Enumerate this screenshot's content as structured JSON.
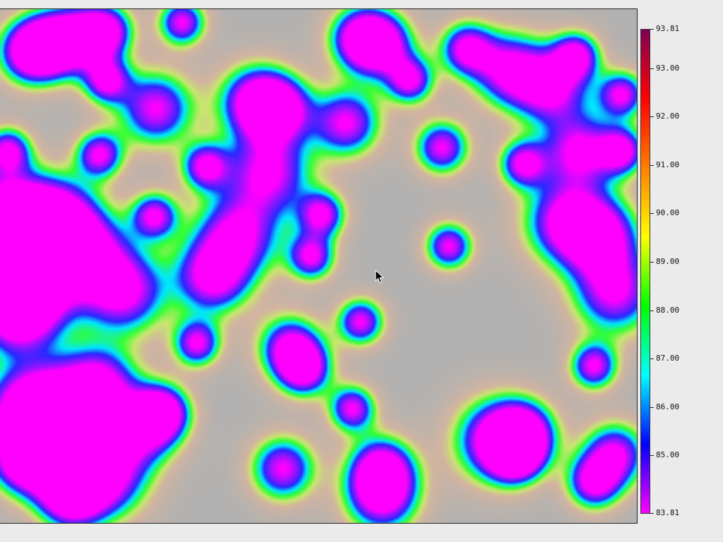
{
  "chart_data": {
    "type": "heatmap",
    "title": "",
    "xlabel": "",
    "ylabel": "",
    "legend": "right",
    "colorbar": {
      "min": 83.81,
      "max": 93.81,
      "tick_labels": [
        "93.81",
        "93.00",
        "92.00",
        "91.00",
        "90.00",
        "89.00",
        "88.00",
        "87.00",
        "86.00",
        "85.00",
        "83.81"
      ],
      "tick_values": [
        93.81,
        93.0,
        92.0,
        91.0,
        90.0,
        89.0,
        88.0,
        87.0,
        86.0,
        85.0,
        83.81
      ],
      "colors": [
        "#ff00ff",
        "#0000ff",
        "#00ffff",
        "#00ff00",
        "#ffff00",
        "#ff7f00",
        "#ff0000",
        "#7f0055"
      ]
    },
    "background_color": "#b1b1b1",
    "blobs_description": "low-value regions (magenta/blue) surrounded by green/orange halos on a gray high-value background"
  },
  "cursor_icon": "arrow-cursor-icon"
}
